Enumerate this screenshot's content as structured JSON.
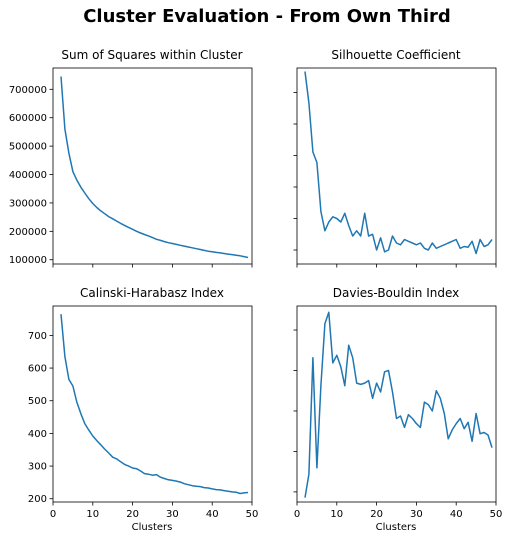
{
  "figure": {
    "suptitle": "Cluster Evaluation - From Own Third"
  },
  "chart_data": [
    {
      "type": "line",
      "title": "Sum of Squares within Cluster",
      "xlabel": "",
      "ylabel": "",
      "xlim": [
        0,
        50
      ],
      "ylim": [
        85000,
        775000
      ],
      "xticks": [
        0,
        10,
        20,
        30,
        40,
        50
      ],
      "xtick_labels": [
        "",
        "",
        "",
        "",
        "",
        ""
      ],
      "yticks": [
        100000,
        200000,
        300000,
        400000,
        500000,
        600000,
        700000
      ],
      "ytick_labels": [
        "100000",
        "200000",
        "300000",
        "400000",
        "500000",
        "600000",
        "700000"
      ],
      "grid": false,
      "x": [
        2,
        3,
        4,
        5,
        6,
        7,
        8,
        9,
        10,
        11,
        12,
        13,
        14,
        15,
        16,
        17,
        18,
        19,
        20,
        21,
        22,
        23,
        24,
        25,
        26,
        27,
        28,
        29,
        30,
        31,
        32,
        33,
        34,
        35,
        36,
        37,
        38,
        39,
        40,
        41,
        42,
        43,
        44,
        45,
        46,
        47,
        48,
        49
      ],
      "series": [
        {
          "values": [
            745000,
            560000,
            475000,
            410000,
            380000,
            355000,
            335000,
            315000,
            298000,
            284000,
            272000,
            262000,
            252000,
            244000,
            236000,
            228000,
            221000,
            214000,
            207000,
            200000,
            194000,
            189000,
            184000,
            178000,
            172000,
            168000,
            164000,
            160000,
            157000,
            154000,
            151000,
            148000,
            145000,
            142000,
            139000,
            136000,
            133000,
            130000,
            128000,
            126000,
            124000,
            122000,
            120000,
            118000,
            116000,
            114000,
            111000,
            108000
          ]
        }
      ]
    },
    {
      "type": "line",
      "title": "Silhouette Coefficient",
      "xlabel": "",
      "ylabel": "",
      "xlim": [
        0,
        50
      ],
      "ylim": [
        0.1,
        0.66
      ],
      "xticks": [
        0,
        10,
        20,
        30,
        40,
        50
      ],
      "xtick_labels": [
        "",
        "",
        "",
        "",
        "",
        ""
      ],
      "yticks": [
        0.14,
        0.23,
        0.32,
        0.41,
        0.5,
        0.59
      ],
      "ytick_labels": [
        "",
        "",
        "",
        "",
        "",
        ""
      ],
      "grid": false,
      "x": [
        2,
        3,
        4,
        5,
        6,
        7,
        8,
        9,
        10,
        11,
        12,
        13,
        14,
        15,
        16,
        17,
        18,
        19,
        20,
        21,
        22,
        23,
        24,
        25,
        26,
        27,
        28,
        29,
        30,
        31,
        32,
        33,
        34,
        35,
        36,
        37,
        38,
        39,
        40,
        41,
        42,
        43,
        44,
        45,
        46,
        47,
        48,
        49
      ],
      "series": [
        {
          "values": [
            0.65,
            0.56,
            0.42,
            0.39,
            0.25,
            0.195,
            0.22,
            0.235,
            0.23,
            0.22,
            0.245,
            0.21,
            0.18,
            0.195,
            0.18,
            0.245,
            0.18,
            0.185,
            0.14,
            0.175,
            0.135,
            0.14,
            0.18,
            0.16,
            0.155,
            0.17,
            0.165,
            0.16,
            0.155,
            0.16,
            0.145,
            0.14,
            0.16,
            0.145,
            0.15,
            0.155,
            0.16,
            0.165,
            0.17,
            0.145,
            0.15,
            0.148,
            0.165,
            0.13,
            0.17,
            0.15,
            0.155,
            0.17
          ]
        }
      ]
    },
    {
      "type": "line",
      "title": "Calinski-Harabasz Index",
      "xlabel": "Clusters",
      "ylabel": "",
      "xlim": [
        0,
        50
      ],
      "ylim": [
        190,
        790
      ],
      "xticks": [
        0,
        10,
        20,
        30,
        40,
        50
      ],
      "xtick_labels": [
        "0",
        "10",
        "20",
        "30",
        "40",
        "50"
      ],
      "yticks": [
        200,
        300,
        400,
        500,
        600,
        700
      ],
      "ytick_labels": [
        "200",
        "300",
        "400",
        "500",
        "600",
        "700"
      ],
      "grid": false,
      "x": [
        2,
        3,
        4,
        5,
        6,
        7,
        8,
        9,
        10,
        11,
        12,
        13,
        14,
        15,
        16,
        17,
        18,
        19,
        20,
        21,
        22,
        23,
        24,
        25,
        26,
        27,
        28,
        29,
        30,
        31,
        32,
        33,
        34,
        35,
        36,
        37,
        38,
        39,
        40,
        41,
        42,
        43,
        44,
        45,
        46,
        47,
        48,
        49
      ],
      "series": [
        {
          "values": [
            765,
            635,
            565,
            545,
            495,
            460,
            430,
            410,
            392,
            378,
            365,
            352,
            340,
            327,
            322,
            313,
            305,
            300,
            294,
            292,
            285,
            277,
            275,
            272,
            274,
            266,
            262,
            258,
            256,
            254,
            251,
            246,
            243,
            240,
            238,
            237,
            234,
            233,
            230,
            228,
            227,
            225,
            223,
            221,
            220,
            216,
            218,
            219
          ]
        }
      ]
    },
    {
      "type": "line",
      "title": "Davies-Bouldin Index",
      "xlabel": "Clusters",
      "ylabel": "",
      "xlim": [
        0,
        50
      ],
      "ylim": [
        0.06,
        1.61
      ],
      "xticks": [
        0,
        10,
        20,
        30,
        40,
        50
      ],
      "xtick_labels": [
        "0",
        "10",
        "20",
        "30",
        "40",
        "50"
      ],
      "yticks": [
        0.14,
        0.46,
        0.78,
        1.1,
        1.42
      ],
      "ytick_labels": [
        "",
        "",
        "",
        "",
        ""
      ],
      "grid": false,
      "x": [
        2,
        3,
        4,
        5,
        6,
        7,
        8,
        9,
        10,
        11,
        12,
        13,
        14,
        15,
        16,
        17,
        18,
        19,
        20,
        21,
        22,
        23,
        24,
        25,
        26,
        27,
        28,
        29,
        30,
        31,
        32,
        33,
        34,
        35,
        36,
        37,
        38,
        39,
        40,
        41,
        42,
        43,
        44,
        45,
        46,
        47,
        48,
        49
      ],
      "series": [
        {
          "values": [
            0.095,
            0.28,
            1.2,
            0.33,
            0.98,
            1.47,
            1.56,
            1.16,
            1.22,
            1.13,
            0.98,
            1.3,
            1.2,
            1.0,
            0.99,
            1.0,
            1.02,
            0.88,
            1.0,
            0.93,
            1.09,
            1.1,
            0.93,
            0.72,
            0.74,
            0.65,
            0.75,
            0.72,
            0.68,
            0.65,
            0.85,
            0.83,
            0.78,
            0.94,
            0.88,
            0.76,
            0.56,
            0.63,
            0.68,
            0.72,
            0.64,
            0.69,
            0.54,
            0.76,
            0.6,
            0.61,
            0.59,
            0.49
          ]
        }
      ]
    }
  ]
}
